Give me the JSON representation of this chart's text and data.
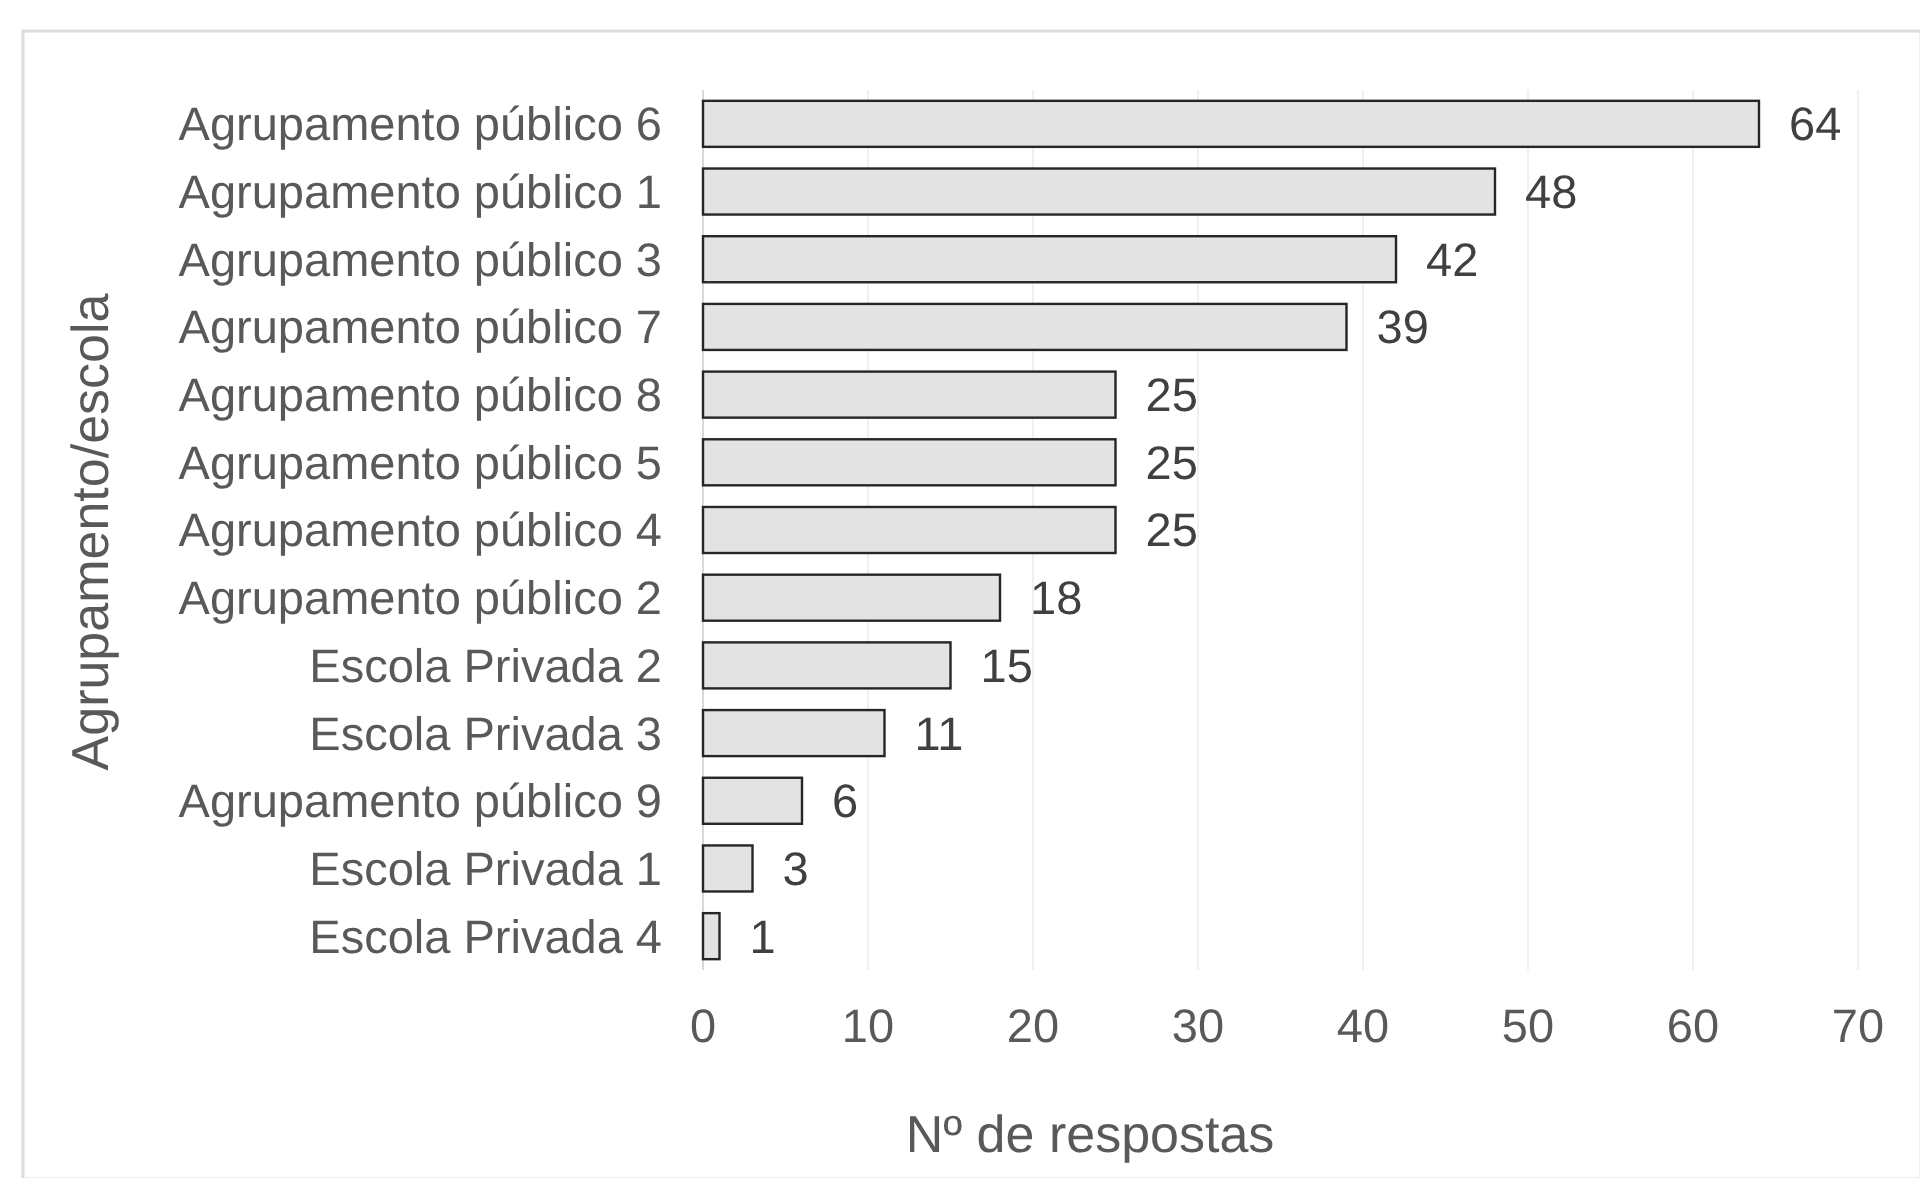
{
  "chart_data": {
    "type": "bar",
    "orientation": "horizontal",
    "xlabel": "Nº de respostas",
    "ylabel": "Agrupamento/escola",
    "categories": [
      "Agrupamento público 6",
      "Agrupamento público 1",
      "Agrupamento público 3",
      "Agrupamento público 7",
      "Agrupamento público 8",
      "Agrupamento público 5",
      "Agrupamento público 4",
      "Agrupamento público 2",
      "Escola Privada 2",
      "Escola Privada 3",
      "Agrupamento público 9",
      "Escola Privada 1",
      "Escola Privada 4"
    ],
    "values": [
      64,
      48,
      42,
      39,
      25,
      25,
      25,
      18,
      15,
      11,
      6,
      3,
      1
    ],
    "color": "#e3e3e3",
    "xlim": [
      0,
      70
    ],
    "xticks": [
      0,
      10,
      20,
      30,
      40,
      50,
      60,
      70
    ],
    "grid": "x",
    "data_labels": true
  }
}
